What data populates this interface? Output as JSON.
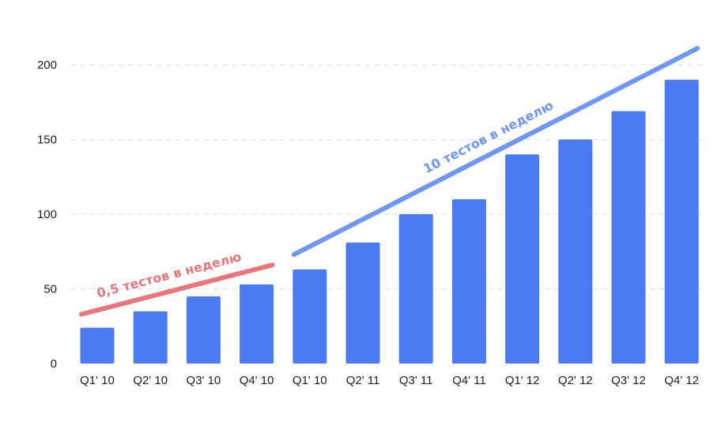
{
  "chart_data": {
    "type": "bar",
    "categories": [
      "Q1' 10",
      "Q2' 10",
      "Q3' 10",
      "Q4' 10",
      "Q1' 10",
      "Q2' 11",
      "Q3' 11",
      "Q4' 11",
      "Q1' 12",
      "Q2' 12",
      "Q3' 12",
      "Q4' 12"
    ],
    "values": [
      24,
      35,
      45,
      53,
      63,
      81,
      100,
      110,
      140,
      150,
      169,
      190
    ],
    "yticks": [
      0,
      50,
      100,
      150,
      200
    ],
    "ylim": [
      0,
      200
    ],
    "grid": true,
    "colors": {
      "bar": "#4a7bf0",
      "slow_trend": "#e8767a",
      "fast_trend": "#6f96f2",
      "grid": "#dddddd",
      "text": "#222222"
    },
    "annotations": [
      {
        "text": "0,5 тестов в неделю",
        "from_category_index": 0,
        "to_category_index": 3,
        "y_start": 33,
        "y_end": 66,
        "color": "#e8767a"
      },
      {
        "text": "10 тестов в неделю",
        "from_category_index": 4,
        "to_category_index": 11,
        "y_start": 73,
        "y_end": 211,
        "color": "#6f96f2"
      }
    ]
  }
}
